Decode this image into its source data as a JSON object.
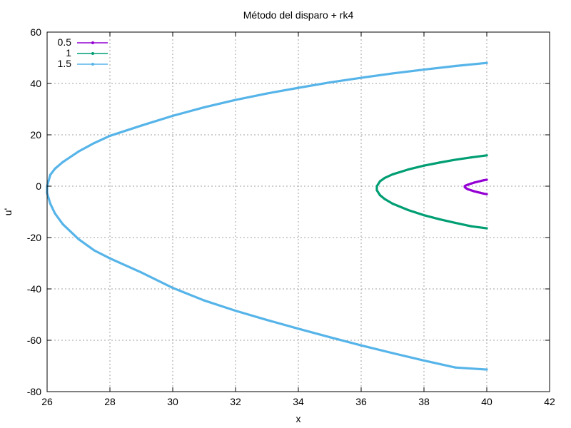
{
  "chart_data": {
    "type": "line",
    "title": "Método del disparo + rk4",
    "xlabel": "x",
    "ylabel": "u'",
    "xlim": [
      26,
      42
    ],
    "ylim": [
      -80,
      60
    ],
    "xticks": [
      26,
      28,
      30,
      32,
      34,
      36,
      38,
      40,
      42
    ],
    "yticks": [
      -80,
      -60,
      -40,
      -20,
      0,
      20,
      40,
      60
    ],
    "grid": true,
    "legend_position": "top-left",
    "series": [
      {
        "name": "0.5",
        "color": "#9400d3",
        "x": [
          40.0,
          39.9,
          39.8,
          39.7,
          39.6,
          39.5,
          39.4,
          39.34,
          39.3,
          39.3,
          39.34,
          39.4,
          39.5,
          39.6,
          39.7,
          39.8,
          39.9,
          40.0
        ],
        "y": [
          2.5,
          2.3,
          2.0,
          1.7,
          1.4,
          1.0,
          0.6,
          0.3,
          0.0,
          -0.3,
          -0.8,
          -1.2,
          -1.6,
          -2.0,
          -2.3,
          -2.6,
          -2.9,
          -3.1
        ]
      },
      {
        "name": "1",
        "color": "#009e73",
        "x": [
          40.0,
          39.5,
          39.0,
          38.5,
          38.0,
          37.5,
          37.0,
          36.75,
          36.6,
          36.5,
          36.5,
          36.6,
          36.75,
          37.0,
          37.5,
          38.0,
          38.5,
          39.0,
          39.5,
          40.0
        ],
        "y": [
          12.0,
          11.2,
          10.3,
          9.2,
          8.0,
          6.5,
          4.6,
          3.2,
          1.9,
          0.0,
          -1.6,
          -3.5,
          -5.0,
          -6.8,
          -9.3,
          -11.3,
          -12.9,
          -14.3,
          -15.6,
          -16.4
        ],
        "x_1": []
      },
      {
        "name": "1.5",
        "color": "#56b4e9",
        "x": [
          40.0,
          39.0,
          38.0,
          37.0,
          36.0,
          35.0,
          34.0,
          33.0,
          32.0,
          31.0,
          30.0,
          29.0,
          28.0,
          27.5,
          27.0,
          26.5,
          26.25,
          26.1,
          26.0,
          26.0,
          26.1,
          26.25,
          26.5,
          27.0,
          27.5,
          28.0,
          29.0,
          30.0,
          31.0,
          32.0,
          33.0,
          34.0,
          35.0,
          36.0,
          37.0,
          38.0,
          39.0,
          40.0
        ],
        "y": [
          48.0,
          46.8,
          45.4,
          43.9,
          42.2,
          40.4,
          38.3,
          36.1,
          33.6,
          30.7,
          27.4,
          23.6,
          19.6,
          16.8,
          13.5,
          9.4,
          6.8,
          4.4,
          0.0,
          -2.7,
          -6.8,
          -10.6,
          -14.8,
          -20.6,
          -25.0,
          -28.1,
          -33.6,
          -39.6,
          -44.5,
          -48.5,
          -52.1,
          -55.5,
          -58.8,
          -62.0,
          -65.0,
          -67.9,
          -70.6,
          -71.4
        ]
      }
    ]
  }
}
